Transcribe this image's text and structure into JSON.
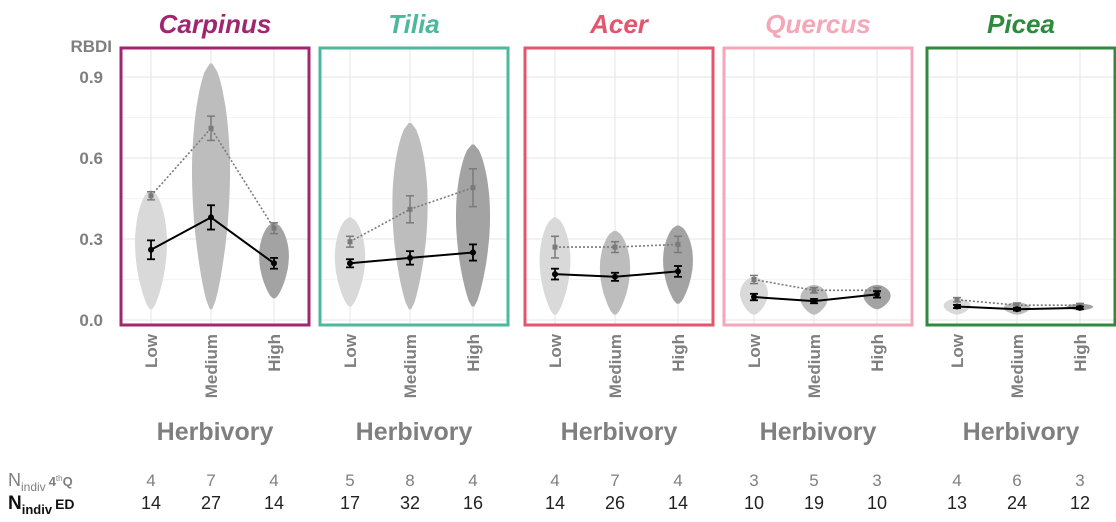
{
  "chart_data": {
    "type": "violin",
    "ylabel": "RBDI",
    "xlabel": "Herbivory",
    "categories": [
      "Low",
      "Medium",
      "High"
    ],
    "ylim": [
      0,
      0.95
    ],
    "yticks": [
      0.0,
      0.3,
      0.6,
      0.9
    ],
    "grid": true,
    "panels": [
      {
        "title": "Carpinus",
        "color": "#a0276f",
        "violins": [
          {
            "min": 0.04,
            "max": 0.48,
            "fill": "#d9d9d9"
          },
          {
            "min": 0.04,
            "max": 0.95,
            "fill": "#bdbdbd"
          },
          {
            "min": 0.08,
            "max": 0.36,
            "fill": "#a3a3a3"
          }
        ],
        "q4_means": [
          0.46,
          0.71,
          0.34
        ],
        "q4_se": [
          0.015,
          0.045,
          0.02
        ],
        "ed_means": [
          0.26,
          0.38,
          0.21
        ],
        "ed_se": [
          0.035,
          0.045,
          0.02
        ],
        "n_q4": [
          "4",
          "7",
          "4"
        ],
        "n_ed": [
          "14",
          "27",
          "14"
        ]
      },
      {
        "title": "Tilia",
        "color": "#4db89b",
        "violins": [
          {
            "min": 0.05,
            "max": 0.38,
            "fill": "#d9d9d9"
          },
          {
            "min": 0.04,
            "max": 0.73,
            "fill": "#bdbdbd"
          },
          {
            "min": 0.05,
            "max": 0.65,
            "fill": "#a3a3a3"
          }
        ],
        "q4_means": [
          0.29,
          0.41,
          0.49
        ],
        "q4_se": [
          0.02,
          0.05,
          0.07
        ],
        "ed_means": [
          0.21,
          0.23,
          0.25
        ],
        "ed_se": [
          0.015,
          0.025,
          0.03
        ],
        "n_q4": [
          "5",
          "8",
          "4"
        ],
        "n_ed": [
          "17",
          "32",
          "16"
        ]
      },
      {
        "title": "Acer",
        "color": "#e2566e",
        "violins": [
          {
            "min": 0.02,
            "max": 0.38,
            "fill": "#d9d9d9"
          },
          {
            "min": 0.02,
            "max": 0.33,
            "fill": "#bdbdbd"
          },
          {
            "min": 0.06,
            "max": 0.35,
            "fill": "#a3a3a3"
          }
        ],
        "q4_means": [
          0.27,
          0.27,
          0.28
        ],
        "q4_se": [
          0.04,
          0.02,
          0.03
        ],
        "ed_means": [
          0.17,
          0.16,
          0.18
        ],
        "ed_se": [
          0.02,
          0.015,
          0.02
        ],
        "n_q4": [
          "4",
          "7",
          "4"
        ],
        "n_ed": [
          "14",
          "26",
          "14"
        ]
      },
      {
        "title": "Quercus",
        "color": "#f4a7b8",
        "violins": [
          {
            "min": 0.02,
            "max": 0.16,
            "fill": "#d9d9d9"
          },
          {
            "min": 0.02,
            "max": 0.13,
            "fill": "#bdbdbd"
          },
          {
            "min": 0.04,
            "max": 0.13,
            "fill": "#a3a3a3"
          }
        ],
        "q4_means": [
          0.15,
          0.11,
          0.11
        ],
        "q4_se": [
          0.015,
          0.01,
          0.01
        ],
        "ed_means": [
          0.085,
          0.07,
          0.095
        ],
        "ed_se": [
          0.012,
          0.008,
          0.012
        ],
        "n_q4": [
          "3",
          "5",
          "3"
        ],
        "n_ed": [
          "10",
          "19",
          "10"
        ]
      },
      {
        "title": "Picea",
        "color": "#2e8b3d",
        "violins": [
          {
            "min": 0.02,
            "max": 0.08,
            "fill": "#d9d9d9"
          },
          {
            "min": 0.02,
            "max": 0.065,
            "fill": "#bdbdbd"
          },
          {
            "min": 0.035,
            "max": 0.06,
            "fill": "#a3a3a3"
          }
        ],
        "q4_means": [
          0.075,
          0.055,
          0.055
        ],
        "q4_se": [
          0.008,
          0.008,
          0.006
        ],
        "ed_means": [
          0.05,
          0.04,
          0.045
        ],
        "ed_se": [
          0.006,
          0.005,
          0.005
        ],
        "n_q4": [
          "4",
          "6",
          "3"
        ],
        "n_ed": [
          "13",
          "24",
          "12"
        ]
      }
    ],
    "n_label_q4": {
      "main": "N",
      "sub": "indiv",
      "extra": "4",
      "sup": "th",
      "end": "Q"
    },
    "n_label_ed": {
      "main": "N",
      "sub": "indiv",
      "extra": "ED"
    }
  }
}
